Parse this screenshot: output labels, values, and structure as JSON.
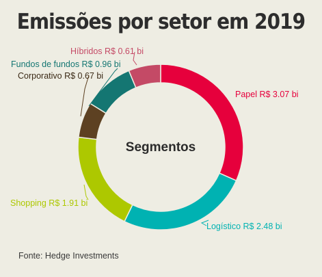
{
  "chart_data": {
    "type": "pie",
    "title": "Emissões por setor em 2019",
    "center_label": "Segmentos",
    "unit": "R$ bi",
    "slices": [
      {
        "name": "Papel",
        "value": 3.07,
        "label": "Papel R$ 3.07 bi",
        "color": "#e6003c"
      },
      {
        "name": "Logístico",
        "value": 2.48,
        "label": "Logístico R$ 2.48 bi",
        "color": "#00b2b2"
      },
      {
        "name": "Shopping",
        "value": 1.91,
        "label": "Shopping R$ 1.91 bi",
        "color": "#adc800"
      },
      {
        "name": "Corporativo",
        "value": 0.67,
        "label": "Corporativo R$ 0.67 bi",
        "color": "#5d4122"
      },
      {
        "name": "Fundos de fundos",
        "value": 0.96,
        "label": "Fundos de fundos R$ 0.96 bi",
        "color": "#147672"
      },
      {
        "name": "Híbridos",
        "value": 0.61,
        "label": "Híbridos R$ 0.61 bi",
        "color": "#c44a66"
      }
    ],
    "source": "Fonte: Hedge Investments"
  }
}
